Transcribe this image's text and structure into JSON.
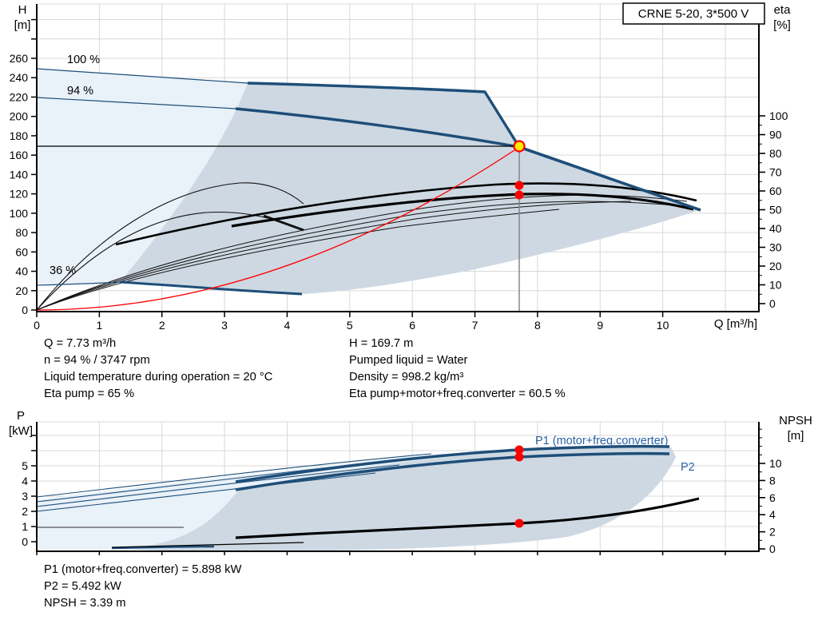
{
  "title_box": "CRNE 5-20, 3*500 V",
  "top_chart": {
    "y_axis_left_title": "H",
    "y_axis_left_unit": "[m]",
    "y_axis_right_title": "eta",
    "y_axis_right_unit": "[%]",
    "x_axis_title": "Q [m³/h]",
    "h_ticks": [
      "0",
      "20",
      "40",
      "60",
      "80",
      "100",
      "120",
      "140",
      "160",
      "180",
      "200",
      "220",
      "240",
      "260"
    ],
    "eta_ticks": [
      "0",
      "10",
      "20",
      "30",
      "40",
      "50",
      "60",
      "70",
      "80",
      "90",
      "100"
    ],
    "q_ticks": [
      "0",
      "1",
      "2",
      "3",
      "4",
      "5",
      "6",
      "7",
      "8",
      "9",
      "10"
    ],
    "curve_labels": {
      "speed_100": "100 %",
      "speed_94": "94 %",
      "speed_36": "36 %"
    },
    "info_left": [
      "Q = 7.73 m³/h",
      "n = 94 % / 3747 rpm",
      "Liquid temperature during operation = 20 °C",
      "Eta pump = 65 %"
    ],
    "info_right": [
      "H = 169.7 m",
      "Pumped liquid = Water",
      "Density = 998.2 kg/m³",
      "Eta pump+motor+freq.converter = 60.5 %"
    ]
  },
  "bottom_chart": {
    "y_axis_left_title": "P",
    "y_axis_left_unit": "[kW]",
    "y_axis_right_title": "NPSH",
    "y_axis_right_unit": "[m]",
    "p_ticks": [
      "0",
      "1",
      "2",
      "3",
      "4",
      "5"
    ],
    "npsh_ticks": [
      "0",
      "2",
      "4",
      "6",
      "8",
      "10"
    ],
    "p1_label": "P1 (motor+freq.converter)",
    "p2_label": "P2",
    "info": [
      "P1 (motor+freq.converter) = 5.898 kW",
      "P2 = 5.492 kW",
      "NPSH = 3.39 m"
    ]
  },
  "colors": {
    "curve_blue": "#1e4e79",
    "label_blue": "#2a64a5",
    "light_region": "#e9f1f9",
    "dark_region": "#cdd8e2",
    "grid": "#d8d8d8",
    "red": "#ff0000",
    "duty_yellow": "#ffe900"
  },
  "chart_data": [
    {
      "type": "line",
      "title": "QH performance curve, CRNE 5-20, 3*500 V",
      "xlabel": "Q [m³/h]",
      "ylabel": "H [m]",
      "ylabel_right": "eta [%]",
      "xlim": [
        0,
        11.5
      ],
      "ylim": [
        0,
        320
      ],
      "ylim_right": [
        0,
        100
      ],
      "grid": true,
      "series": [
        {
          "name": "H at 100 % speed",
          "x": [
            0,
            3.35,
            7.16,
            7.73,
            10.6
          ],
          "y": [
            250,
            235,
            226,
            169.7,
            104
          ]
        },
        {
          "name": "H at 94 % speed (duty curve)",
          "x": [
            0,
            3.2,
            5.0,
            6.5,
            7.73,
            9.0,
            10.6
          ],
          "y": [
            220,
            209,
            197,
            184,
            169.7,
            140,
            104
          ]
        },
        {
          "name": "H at min speed (36 % label)",
          "x": [
            0,
            1.33,
            2.8,
            4.24
          ],
          "y": [
            25.6,
            29,
            23,
            16.5
          ]
        },
        {
          "name": "Eta pump",
          "x": [
            1.26,
            3.0,
            5.0,
            7.73,
            10.6
          ],
          "y": [
            31.5,
            48,
            62,
            65,
            55
          ],
          "axis": "right"
        },
        {
          "name": "Eta pump+motor+freq.converter",
          "x": [
            3.11,
            5.0,
            7.73,
            10.5
          ],
          "y": [
            41,
            55,
            60.5,
            50
          ],
          "axis": "right"
        }
      ],
      "duty_point": {
        "Q": 7.73,
        "H": 169.7,
        "eta_pump": 65,
        "eta_total": 60.5
      },
      "annotations": [
        "100 %",
        "94 %",
        "36 %"
      ],
      "operating_envelope": true
    },
    {
      "type": "line",
      "title": "Power and NPSH curves",
      "xlabel": "Q [m³/h]",
      "ylabel": "P [kW]",
      "ylabel_right": "NPSH [m]",
      "xlim": [
        0,
        11.5
      ],
      "ylim": [
        0,
        8
      ],
      "ylim_right": [
        0,
        15
      ],
      "grid": true,
      "series": [
        {
          "name": "P1 (motor+freq.converter)",
          "x": [
            3.18,
            5.0,
            7.73,
            10.1
          ],
          "y": [
            4.0,
            5.2,
            5.898,
            6.2
          ]
        },
        {
          "name": "P2",
          "x": [
            3.18,
            5.0,
            7.73,
            10.1
          ],
          "y": [
            3.5,
            4.7,
            5.492,
            5.7
          ]
        },
        {
          "name": "NPSH",
          "x": [
            3.17,
            5.0,
            7.73,
            10.6
          ],
          "y": [
            1.3,
            2.1,
            3.39,
            6.0
          ],
          "axis": "right"
        }
      ],
      "duty_point": {
        "Q": 7.73,
        "P1_kW": 5.898,
        "P2_kW": 5.492,
        "NPSH_m": 3.39
      }
    }
  ]
}
